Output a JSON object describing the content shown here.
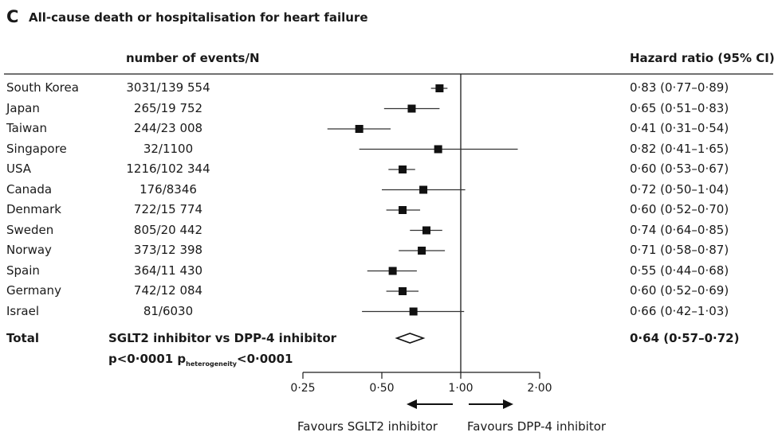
{
  "panel": {
    "letter": "C",
    "title": "All-cause death or hospitalisation for heart failure"
  },
  "columns": {
    "events_header": "number of events/N",
    "hr_header": "Hazard ratio (95% CI)"
  },
  "chart_data": {
    "type": "forest",
    "title": "All-cause death or hospitalisation for heart failure",
    "x_scale": "log",
    "xlim": [
      0.25,
      2.0
    ],
    "reference_line": 1.0,
    "xticks": [
      {
        "value": 0.25,
        "label": "0·25"
      },
      {
        "value": 0.5,
        "label": "0·50"
      },
      {
        "value": 1.0,
        "label": "1·00"
      },
      {
        "value": 2.0,
        "label": "2·00"
      }
    ],
    "rows": [
      {
        "country": "South Korea",
        "events": "3031/139 554",
        "hr": 0.83,
        "lo": 0.77,
        "hi": 0.89,
        "hr_text": "0·83 (0·77–0·89)"
      },
      {
        "country": "Japan",
        "events": "265/19 752",
        "hr": 0.65,
        "lo": 0.51,
        "hi": 0.83,
        "hr_text": "0·65 (0·51–0·83)"
      },
      {
        "country": "Taiwan",
        "events": "244/23 008",
        "hr": 0.41,
        "lo": 0.31,
        "hi": 0.54,
        "hr_text": "0·41 (0·31–0·54)"
      },
      {
        "country": "Singapore",
        "events": "32/1100",
        "hr": 0.82,
        "lo": 0.41,
        "hi": 1.65,
        "hr_text": "0·82 (0·41–1·65)"
      },
      {
        "country": "USA",
        "events": "1216/102 344",
        "hr": 0.6,
        "lo": 0.53,
        "hi": 0.67,
        "hr_text": "0·60 (0·53–0·67)"
      },
      {
        "country": "Canada",
        "events": "176/8346",
        "hr": 0.72,
        "lo": 0.5,
        "hi": 1.04,
        "hr_text": "0·72 (0·50–1·04)"
      },
      {
        "country": "Denmark",
        "events": "722/15 774",
        "hr": 0.6,
        "lo": 0.52,
        "hi": 0.7,
        "hr_text": "0·60 (0·52–0·70)"
      },
      {
        "country": "Sweden",
        "events": "805/20 442",
        "hr": 0.74,
        "lo": 0.64,
        "hi": 0.85,
        "hr_text": "0·74 (0·64–0·85)"
      },
      {
        "country": "Norway",
        "events": "373/12 398",
        "hr": 0.71,
        "lo": 0.58,
        "hi": 0.87,
        "hr_text": "0·71 (0·58–0·87)"
      },
      {
        "country": "Spain",
        "events": "364/11 430",
        "hr": 0.55,
        "lo": 0.44,
        "hi": 0.68,
        "hr_text": "0·55 (0·44–0·68)"
      },
      {
        "country": "Germany",
        "events": "742/12 084",
        "hr": 0.6,
        "lo": 0.52,
        "hi": 0.69,
        "hr_text": "0·60 (0·52–0·69)"
      },
      {
        "country": "Israel",
        "events": "81/6030",
        "hr": 0.66,
        "lo": 0.42,
        "hi": 1.03,
        "hr_text": "0·66 (0·42–1·03)"
      }
    ],
    "total": {
      "label": "Total",
      "comparison": "SGLT2 inhibitor vs DPP-4 inhibitor",
      "hr": 0.64,
      "lo": 0.57,
      "hi": 0.72,
      "hr_text": "0·64 (0·57–0·72)",
      "p_prefix": "p<0·0001 p",
      "p_sub": "heterogeneity",
      "p_suffix": "<0·0001"
    },
    "favours_left": "Favours SGLT2 inhibitor",
    "favours_right": "Favours DPP-4 inhibitor"
  }
}
